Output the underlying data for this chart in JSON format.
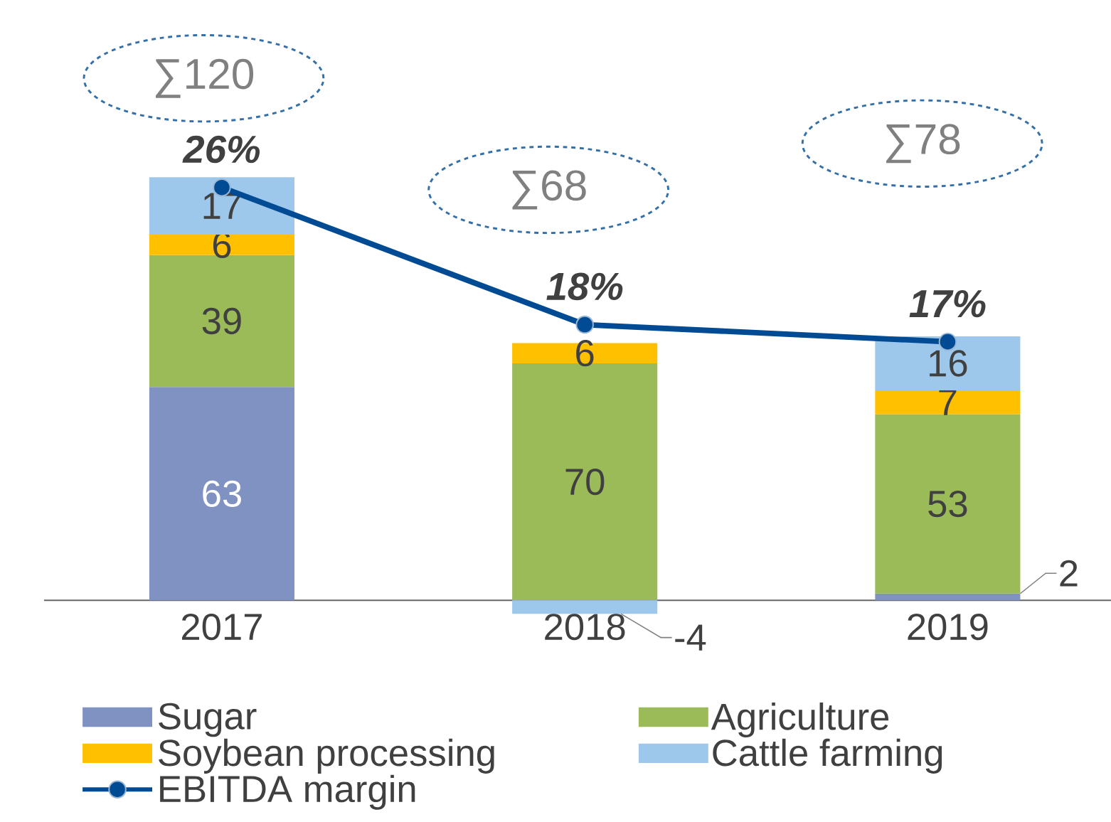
{
  "chart_data": {
    "type": "bar",
    "stacked": true,
    "categories": [
      "2017",
      "2018",
      "2019"
    ],
    "series": [
      {
        "name": "Sugar",
        "color": "#7f92c1",
        "values": [
          63,
          null,
          2
        ]
      },
      {
        "name": "Agriculture",
        "color": "#9bbb59",
        "values": [
          39,
          70,
          53
        ]
      },
      {
        "name": "Soybean processing",
        "color": "#ffc000",
        "values": [
          6,
          6,
          7
        ]
      },
      {
        "name": "Cattle farming",
        "color": "#9dc8ec",
        "values": [
          17,
          -4,
          16
        ]
      },
      {
        "name": "EBITDA margin",
        "type": "line",
        "axis": "y2",
        "color": "#004b93",
        "values": [
          26,
          18,
          17
        ],
        "value_labels": [
          "26%",
          "18%",
          "17%"
        ]
      }
    ],
    "marker": "circle",
    "data_labels": true,
    "annotations": [
      "∑120",
      "∑68",
      "∑78"
    ],
    "legend": "bottom",
    "tick_labels": "x"
  }
}
